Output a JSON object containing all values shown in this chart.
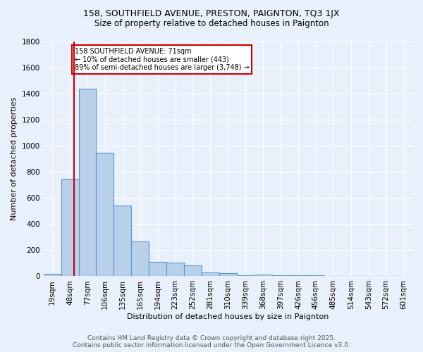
{
  "title": "158, SOUTHFIELD AVENUE, PRESTON, PAIGNTON, TQ3 1JX",
  "subtitle": "Size of property relative to detached houses in Paignton",
  "xlabel": "Distribution of detached houses by size in Paignton",
  "ylabel": "Number of detached properties",
  "bin_labels": [
    "19sqm",
    "48sqm",
    "77sqm",
    "106sqm",
    "135sqm",
    "165sqm",
    "194sqm",
    "223sqm",
    "252sqm",
    "281sqm",
    "310sqm",
    "339sqm",
    "368sqm",
    "397sqm",
    "426sqm",
    "456sqm",
    "485sqm",
    "514sqm",
    "543sqm",
    "572sqm",
    "601sqm"
  ],
  "bar_values": [
    18,
    748,
    1440,
    948,
    540,
    268,
    108,
    103,
    85,
    30,
    22,
    10,
    12,
    8,
    10,
    8,
    3,
    0,
    0,
    0,
    3
  ],
  "bar_color": "#b8d0ea",
  "bar_edge_color": "#5a96cc",
  "red_line_bin": 1.72,
  "annotation_text": "158 SOUTHFIELD AVENUE: 71sqm\n← 10% of detached houses are smaller (443)\n89% of semi-detached houses are larger (3,748) →",
  "annotation_box_color": "white",
  "annotation_box_edge_color": "#cc0000",
  "red_line_color": "#cc0000",
  "ylim": [
    0,
    1800
  ],
  "yticks": [
    0,
    200,
    400,
    600,
    800,
    1000,
    1200,
    1400,
    1600,
    1800
  ],
  "footer_line1": "Contains HM Land Registry data © Crown copyright and database right 2025.",
  "footer_line2": "Contains public sector information licensed under the Open Government Licence v3.0.",
  "background_color": "#e8f0fb",
  "grid_color": "white",
  "title_fontsize": 9,
  "subtitle_fontsize": 8.5,
  "label_fontsize": 8,
  "tick_fontsize": 7.5,
  "footer_fontsize": 6.5
}
